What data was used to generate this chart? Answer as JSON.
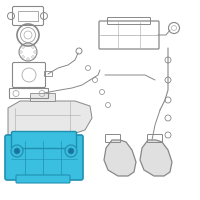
{
  "background_color": "#ffffff",
  "line_color": "#aaaaaa",
  "line_color_dark": "#888888",
  "highlight_color": "#3bbfe0",
  "highlight_edge": "#2090b0",
  "highlight_dark": "#1a70a0",
  "fig_width": 2.0,
  "fig_height": 2.0,
  "dpi": 100
}
